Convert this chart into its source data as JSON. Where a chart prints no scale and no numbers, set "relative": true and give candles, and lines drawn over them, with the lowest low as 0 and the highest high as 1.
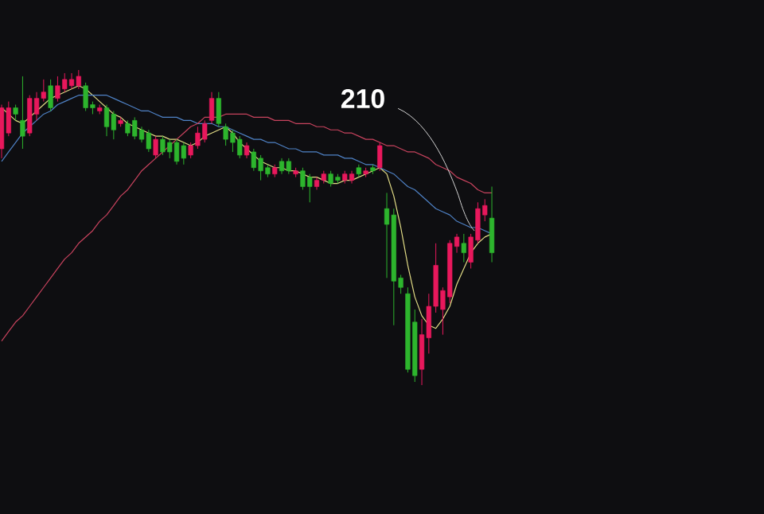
{
  "chart_data": {
    "type": "candlestick",
    "relative": true,
    "categories": [
      null,
      null,
      null,
      null,
      null,
      null,
      null,
      null,
      null,
      null,
      null,
      null,
      null,
      null,
      null,
      null,
      null,
      null,
      null,
      null,
      null,
      null,
      null,
      null,
      null,
      null,
      null,
      null,
      null,
      null,
      null,
      null,
      null,
      null,
      null,
      null,
      null,
      null,
      null,
      null,
      null,
      null,
      null,
      null,
      null,
      null,
      null,
      null,
      null,
      null,
      null,
      null,
      null,
      null,
      null,
      null,
      null,
      null,
      null,
      null,
      null,
      null,
      null,
      null,
      null,
      null,
      null,
      null,
      null,
      null,
      null
    ],
    "ohlc": [
      [
        0.75,
        0.89,
        0.72,
        0.88
      ],
      [
        0.8,
        0.9,
        0.79,
        0.88
      ],
      [
        0.88,
        0.89,
        0.84,
        0.86
      ],
      [
        0.84,
        0.98,
        0.75,
        0.79
      ],
      [
        0.8,
        0.92,
        0.79,
        0.91
      ],
      [
        0.86,
        0.93,
        0.84,
        0.91
      ],
      [
        0.91,
        0.97,
        0.9,
        0.93
      ],
      [
        0.95,
        0.97,
        0.87,
        0.88
      ],
      [
        0.91,
        0.98,
        0.9,
        0.95
      ],
      [
        0.94,
        0.99,
        0.93,
        0.97
      ],
      [
        0.95,
        0.99,
        0.94,
        0.97
      ],
      [
        0.95,
        1.0,
        0.94,
        0.98
      ],
      [
        0.95,
        0.96,
        0.87,
        0.88
      ],
      [
        0.89,
        0.9,
        0.86,
        0.88
      ],
      [
        0.87,
        0.89,
        0.86,
        0.88
      ],
      [
        0.88,
        0.89,
        0.79,
        0.82
      ],
      [
        0.86,
        0.87,
        0.78,
        0.81
      ],
      [
        0.83,
        0.85,
        0.82,
        0.84
      ],
      [
        0.83,
        0.84,
        0.79,
        0.8
      ],
      [
        0.84,
        0.85,
        0.78,
        0.79
      ],
      [
        0.81,
        0.82,
        0.77,
        0.78
      ],
      [
        0.8,
        0.81,
        0.74,
        0.75
      ],
      [
        0.73,
        0.79,
        0.72,
        0.78
      ],
      [
        0.78,
        0.79,
        0.73,
        0.74
      ],
      [
        0.77,
        0.78,
        0.72,
        0.74
      ],
      [
        0.77,
        0.78,
        0.7,
        0.71
      ],
      [
        0.76,
        0.77,
        0.7,
        0.72
      ],
      [
        0.73,
        0.77,
        0.72,
        0.76
      ],
      [
        0.76,
        0.82,
        0.75,
        0.8
      ],
      [
        0.78,
        0.84,
        0.77,
        0.83
      ],
      [
        0.84,
        0.93,
        0.83,
        0.91
      ],
      [
        0.91,
        0.93,
        0.82,
        0.83
      ],
      [
        0.82,
        0.83,
        0.76,
        0.78
      ],
      [
        0.8,
        0.81,
        0.74,
        0.77
      ],
      [
        0.78,
        0.79,
        0.72,
        0.73
      ],
      [
        0.73,
        0.77,
        0.72,
        0.76
      ],
      [
        0.74,
        0.75,
        0.68,
        0.69
      ],
      [
        0.72,
        0.73,
        0.65,
        0.68
      ],
      [
        0.69,
        0.7,
        0.66,
        0.67
      ],
      [
        0.67,
        0.7,
        0.66,
        0.69
      ],
      [
        0.71,
        0.72,
        0.67,
        0.68
      ],
      [
        0.71,
        0.72,
        0.67,
        0.68
      ],
      [
        0.67,
        0.69,
        0.66,
        0.68
      ],
      [
        0.68,
        0.69,
        0.62,
        0.63
      ],
      [
        0.66,
        0.67,
        0.58,
        0.63
      ],
      [
        0.63,
        0.66,
        0.62,
        0.65
      ],
      [
        0.65,
        0.68,
        0.64,
        0.67
      ],
      [
        0.67,
        0.68,
        0.63,
        0.64
      ],
      [
        0.66,
        0.67,
        0.64,
        0.65
      ],
      [
        0.65,
        0.68,
        0.64,
        0.67
      ],
      [
        0.65,
        0.68,
        0.64,
        0.67
      ],
      [
        0.69,
        0.7,
        0.66,
        0.67
      ],
      [
        0.67,
        0.69,
        0.66,
        0.68
      ],
      [
        0.69,
        0.7,
        0.67,
        0.68
      ],
      [
        0.69,
        0.77,
        0.68,
        0.76
      ],
      [
        0.56,
        0.61,
        0.34,
        0.51
      ],
      [
        0.54,
        0.56,
        0.19,
        0.33
      ],
      [
        0.34,
        0.35,
        0.29,
        0.31
      ],
      [
        0.29,
        0.31,
        0.04,
        0.05
      ],
      [
        0.2,
        0.24,
        0.01,
        0.03
      ],
      [
        0.05,
        0.21,
        0.0,
        0.16
      ],
      [
        0.15,
        0.29,
        0.1,
        0.25
      ],
      [
        0.25,
        0.45,
        0.23,
        0.38
      ],
      [
        0.24,
        0.31,
        0.16,
        0.3
      ],
      [
        0.28,
        0.46,
        0.26,
        0.45
      ],
      [
        0.44,
        0.48,
        0.42,
        0.47
      ],
      [
        0.45,
        0.48,
        0.39,
        0.42
      ],
      [
        0.39,
        0.48,
        0.37,
        0.47
      ],
      [
        0.46,
        0.58,
        0.45,
        0.56
      ],
      [
        0.54,
        0.59,
        0.52,
        0.57
      ],
      [
        0.53,
        0.63,
        0.39,
        0.42
      ]
    ],
    "colors": [
      "#e8185c",
      "#e8185c",
      "#2db52d",
      "#2db52d",
      "#e8185c",
      "#e8185c",
      "#e8185c",
      "#2db52d",
      "#e8185c",
      "#e8185c",
      "#e8185c",
      "#e8185c",
      "#2db52d",
      "#2db52d",
      "#e8185c",
      "#2db52d",
      "#2db52d",
      "#e8185c",
      "#2db52d",
      "#2db52d",
      "#2db52d",
      "#2db52d",
      "#e8185c",
      "#2db52d",
      "#2db52d",
      "#2db52d",
      "#2db52d",
      "#e8185c",
      "#e8185c",
      "#e8185c",
      "#e8185c",
      "#2db52d",
      "#2db52d",
      "#2db52d",
      "#2db52d",
      "#e8185c",
      "#2db52d",
      "#2db52d",
      "#2db52d",
      "#e8185c",
      "#2db52d",
      "#2db52d",
      "#e8185c",
      "#2db52d",
      "#2db52d",
      "#e8185c",
      "#e8185c",
      "#2db52d",
      "#2db52d",
      "#e8185c",
      "#e8185c",
      "#2db52d",
      "#e8185c",
      "#2db52d",
      "#e8185c",
      "#2db52d",
      "#2db52d",
      "#2db52d",
      "#2db52d",
      "#2db52d",
      "#e8185c",
      "#e8185c",
      "#e8185c",
      "#e8185c",
      "#e8185c",
      "#e8185c",
      "#2db52d",
      "#e8185c",
      "#e8185c",
      "#e8185c",
      "#2db52d"
    ],
    "series": [
      {
        "type": "line",
        "color": "#e2dc86",
        "values": [
          0.88,
          0.86,
          0.84,
          0.83,
          0.85,
          0.87,
          0.89,
          0.91,
          0.92,
          0.93,
          0.94,
          0.95,
          0.94,
          0.92,
          0.9,
          0.88,
          0.86,
          0.85,
          0.83,
          0.82,
          0.81,
          0.8,
          0.79,
          0.79,
          0.78,
          0.78,
          0.77,
          0.76,
          0.77,
          0.79,
          0.8,
          0.81,
          0.82,
          0.8,
          0.77,
          0.75,
          0.73,
          0.71,
          0.7,
          0.69,
          0.69,
          0.68,
          0.68,
          0.67,
          0.66,
          0.66,
          0.65,
          0.64,
          0.64,
          0.65,
          0.65,
          0.66,
          0.67,
          0.68,
          0.69,
          0.67,
          0.6,
          0.5,
          0.38,
          0.28,
          0.22,
          0.19,
          0.18,
          0.21,
          0.25,
          0.32,
          0.37,
          0.42,
          0.45,
          0.47,
          0.48
        ]
      },
      {
        "type": "line",
        "color": "#4f82c6",
        "values": [
          0.71,
          0.74,
          0.77,
          0.8,
          0.82,
          0.84,
          0.86,
          0.87,
          0.89,
          0.9,
          0.91,
          0.92,
          0.92,
          0.92,
          0.92,
          0.92,
          0.91,
          0.9,
          0.89,
          0.88,
          0.87,
          0.87,
          0.86,
          0.85,
          0.85,
          0.85,
          0.84,
          0.84,
          0.83,
          0.83,
          0.83,
          0.82,
          0.82,
          0.81,
          0.8,
          0.79,
          0.78,
          0.78,
          0.77,
          0.77,
          0.76,
          0.75,
          0.75,
          0.74,
          0.74,
          0.74,
          0.73,
          0.73,
          0.73,
          0.72,
          0.72,
          0.71,
          0.7,
          0.7,
          0.69,
          0.68,
          0.67,
          0.65,
          0.63,
          0.62,
          0.6,
          0.58,
          0.56,
          0.55,
          0.54,
          0.52,
          0.51,
          0.5,
          0.5,
          0.49,
          0.48
        ]
      },
      {
        "type": "line",
        "color": "#c8435e",
        "values": [
          0.14,
          0.17,
          0.2,
          0.22,
          0.25,
          0.28,
          0.31,
          0.34,
          0.37,
          0.4,
          0.42,
          0.45,
          0.47,
          0.49,
          0.52,
          0.54,
          0.57,
          0.6,
          0.62,
          0.65,
          0.68,
          0.7,
          0.72,
          0.74,
          0.76,
          0.78,
          0.8,
          0.82,
          0.83,
          0.85,
          0.85,
          0.85,
          0.86,
          0.86,
          0.86,
          0.86,
          0.85,
          0.85,
          0.85,
          0.84,
          0.84,
          0.84,
          0.83,
          0.83,
          0.83,
          0.82,
          0.82,
          0.81,
          0.81,
          0.8,
          0.8,
          0.79,
          0.78,
          0.78,
          0.77,
          0.76,
          0.76,
          0.75,
          0.74,
          0.74,
          0.73,
          0.72,
          0.7,
          0.69,
          0.68,
          0.66,
          0.65,
          0.64,
          0.62,
          0.61,
          0.61
        ]
      }
    ],
    "annotations": [
      "210"
    ]
  }
}
